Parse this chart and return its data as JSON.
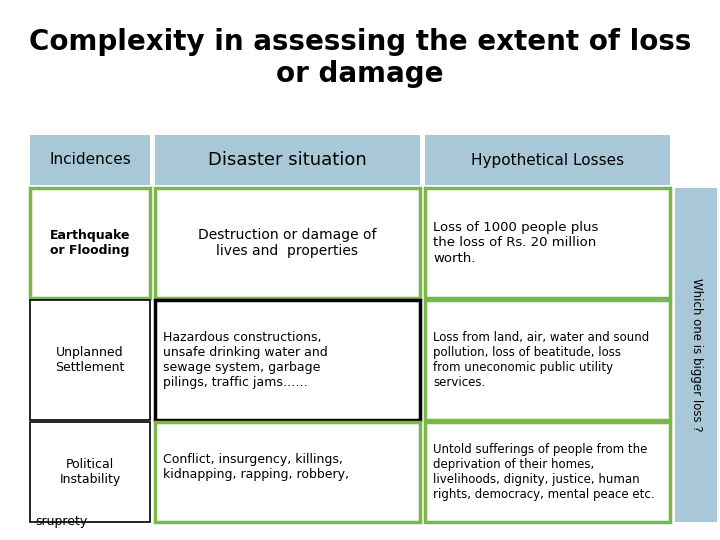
{
  "title": "Complexity in assessing the extent of loss\nor damage",
  "title_fontsize": 20,
  "bg_color": "#ffffff",
  "header_bg": "#a8c8d8",
  "green_border": "#7ab648",
  "black_border": "#000000",
  "header_labels": [
    "Incidences",
    "Disaster situation",
    "Hypothetical Losses"
  ],
  "row1_label": "Earthquake\nor Flooding",
  "row1_disaster": "Destruction or damage of\nlives and  properties",
  "row1_hypo": "Loss of 1000 people plus\nthe loss of Rs. 20 million\nworth.",
  "row2_label": "Unplanned\nSettlement",
  "row2_disaster": "Hazardous constructions,\nunsafe drinking water and\nsewage system, garbage\npilings, traffic jams……",
  "row2_hypo": "Loss from land, air, water and sound\npollution, loss of beatitude, loss\nfrom uneconomic public utility\nservices.",
  "row3_label": "Political\nInstability",
  "row3_disaster": "Conflict, insurgency, killings,\nkidnapping, rapping, robbery,",
  "row3_hypo": "Untold sufferings of people from the\ndeprivation of their homes,\nlivelihoods, dignity, justice, human\nrights, democracy, mental peace etc.",
  "side_label": "Which one is bigger loss ?",
  "footer": "sruprety"
}
